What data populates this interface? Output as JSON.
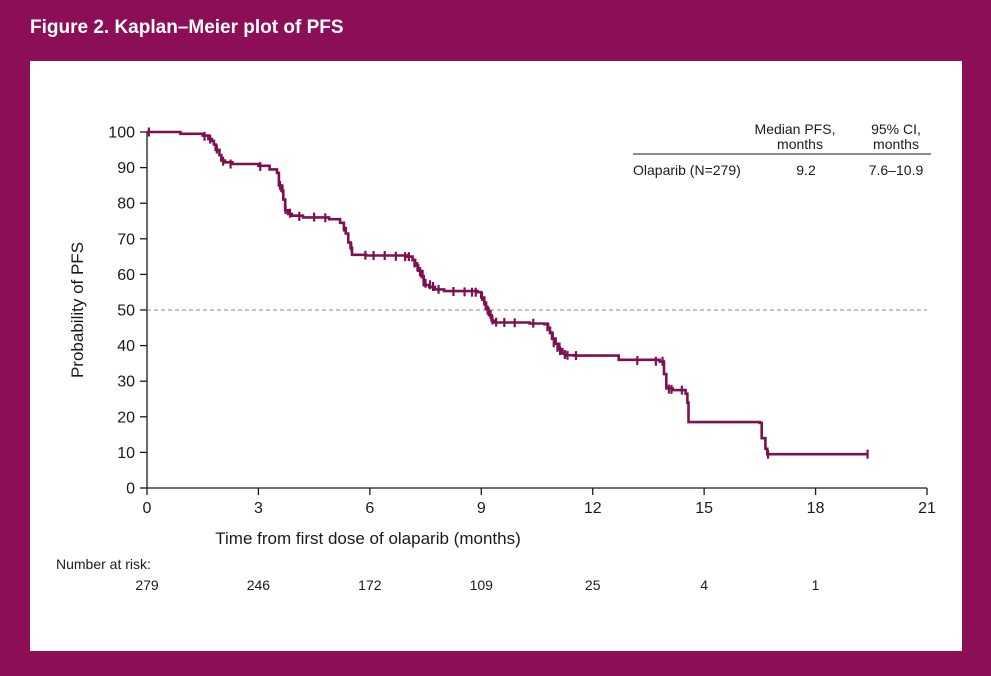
{
  "figure_title": "Figure 2. Kaplan–Meier plot of PFS",
  "chart_data": {
    "type": "line",
    "subtype": "kaplan-meier",
    "title": "Figure 2. Kaplan–Meier plot of PFS",
    "xlabel": "Time from first dose of olaparib (months)",
    "ylabel": "Probability of PFS",
    "xlim": [
      0,
      21
    ],
    "ylim": [
      0,
      100
    ],
    "xticks": [
      0,
      3,
      6,
      9,
      12,
      15,
      18,
      21
    ],
    "yticks": [
      0,
      10,
      20,
      30,
      40,
      50,
      60,
      70,
      80,
      90,
      100
    ],
    "reference_line_y": 50,
    "series": [
      {
        "name": "Olaparib (N=279)",
        "color": "#7d1150",
        "steps": [
          [
            0,
            100
          ],
          [
            0.9,
            99.5
          ],
          [
            1.5,
            99
          ],
          [
            1.65,
            98
          ],
          [
            1.75,
            97.5
          ],
          [
            1.8,
            96.5
          ],
          [
            1.85,
            95
          ],
          [
            1.95,
            93.5
          ],
          [
            2.0,
            92
          ],
          [
            2.1,
            91.5
          ],
          [
            2.3,
            91
          ],
          [
            3.0,
            90.5
          ],
          [
            3.3,
            89.5
          ],
          [
            3.5,
            88.5
          ],
          [
            3.55,
            85
          ],
          [
            3.62,
            83.5
          ],
          [
            3.67,
            81
          ],
          [
            3.72,
            78
          ],
          [
            3.8,
            77
          ],
          [
            3.9,
            76.5
          ],
          [
            4.2,
            76
          ],
          [
            4.9,
            75.5
          ],
          [
            5.2,
            74.5
          ],
          [
            5.3,
            73
          ],
          [
            5.35,
            71.5
          ],
          [
            5.42,
            69
          ],
          [
            5.48,
            67.5
          ],
          [
            5.52,
            65.5
          ],
          [
            5.9,
            65.3
          ],
          [
            7.0,
            65
          ],
          [
            7.15,
            64
          ],
          [
            7.22,
            62.5
          ],
          [
            7.3,
            61
          ],
          [
            7.38,
            59.5
          ],
          [
            7.45,
            57
          ],
          [
            7.6,
            56.5
          ],
          [
            7.75,
            55.8
          ],
          [
            8.0,
            55.3
          ],
          [
            8.9,
            55
          ],
          [
            9.0,
            53.5
          ],
          [
            9.08,
            52
          ],
          [
            9.13,
            50.5
          ],
          [
            9.18,
            49.2
          ],
          [
            9.23,
            48.5
          ],
          [
            9.28,
            47
          ],
          [
            9.35,
            46.5
          ],
          [
            9.6,
            46.5
          ],
          [
            10.3,
            46.2
          ],
          [
            10.7,
            46
          ],
          [
            10.8,
            45
          ],
          [
            10.85,
            43.5
          ],
          [
            10.92,
            42
          ],
          [
            11.0,
            40.5
          ],
          [
            11.1,
            39
          ],
          [
            11.18,
            37.8
          ],
          [
            11.25,
            37.3
          ],
          [
            11.5,
            37.2
          ],
          [
            12.7,
            36
          ],
          [
            13.8,
            35.5
          ],
          [
            13.92,
            32
          ],
          [
            13.98,
            28
          ],
          [
            14.15,
            27.5
          ],
          [
            14.5,
            26.5
          ],
          [
            14.55,
            24
          ],
          [
            14.58,
            18.5
          ],
          [
            16.5,
            18.3
          ],
          [
            16.55,
            14
          ],
          [
            16.65,
            11
          ],
          [
            16.7,
            9.5
          ],
          [
            19.4,
            9.5
          ]
        ],
        "censored": [
          [
            0.05,
            100
          ],
          [
            1.55,
            98.8
          ],
          [
            1.7,
            98
          ],
          [
            1.88,
            95.2
          ],
          [
            2.05,
            91.8
          ],
          [
            2.25,
            91
          ],
          [
            3.05,
            90.3
          ],
          [
            3.58,
            85
          ],
          [
            3.65,
            84
          ],
          [
            3.73,
            78.2
          ],
          [
            3.85,
            77.2
          ],
          [
            4.1,
            76.3
          ],
          [
            4.5,
            76.1
          ],
          [
            4.8,
            75.9
          ],
          [
            5.3,
            73.3
          ],
          [
            5.5,
            67.8
          ],
          [
            5.88,
            65.4
          ],
          [
            6.1,
            65.3
          ],
          [
            6.4,
            65.3
          ],
          [
            6.7,
            65.1
          ],
          [
            6.95,
            65
          ],
          [
            7.05,
            65
          ],
          [
            7.2,
            63.2
          ],
          [
            7.28,
            62.2
          ],
          [
            7.35,
            60.8
          ],
          [
            7.42,
            60
          ],
          [
            7.5,
            57.5
          ],
          [
            7.62,
            57.1
          ],
          [
            7.7,
            56.6
          ],
          [
            7.85,
            55.8
          ],
          [
            8.25,
            55.2
          ],
          [
            8.55,
            55.1
          ],
          [
            8.75,
            55
          ],
          [
            8.85,
            55
          ],
          [
            9.02,
            53.8
          ],
          [
            9.08,
            52.5
          ],
          [
            9.12,
            51.2
          ],
          [
            9.17,
            50
          ],
          [
            9.2,
            49.5
          ],
          [
            9.25,
            48.7
          ],
          [
            9.3,
            47.2
          ],
          [
            9.4,
            46.6
          ],
          [
            9.62,
            46.5
          ],
          [
            9.9,
            46.4
          ],
          [
            10.4,
            46.3
          ],
          [
            10.78,
            45.3
          ],
          [
            10.9,
            42.8
          ],
          [
            10.95,
            40.8
          ],
          [
            11.05,
            39.5
          ],
          [
            11.12,
            38.6
          ],
          [
            11.25,
            37.5
          ],
          [
            11.32,
            37.3
          ],
          [
            11.55,
            37.2
          ],
          [
            13.2,
            35.8
          ],
          [
            13.7,
            35.6
          ],
          [
            13.88,
            35.6
          ],
          [
            14.05,
            27.8
          ],
          [
            14.12,
            27.7
          ],
          [
            14.4,
            27.5
          ],
          [
            16.72,
            9.5
          ],
          [
            19.4,
            9.5
          ]
        ]
      }
    ],
    "risk_table": {
      "label": "Number at risk:",
      "times": [
        0,
        3,
        6,
        9,
        12,
        15,
        18
      ],
      "counts": [
        "279",
        "246",
        "172",
        "109",
        "25",
        "4",
        "1"
      ]
    },
    "summary_table": {
      "headers": [
        "Median PFS,",
        "months",
        "95% CI,",
        "months"
      ],
      "row_label": "Olaparib (N=279)",
      "median": "9.2",
      "ci": "7.6–10.9"
    }
  }
}
